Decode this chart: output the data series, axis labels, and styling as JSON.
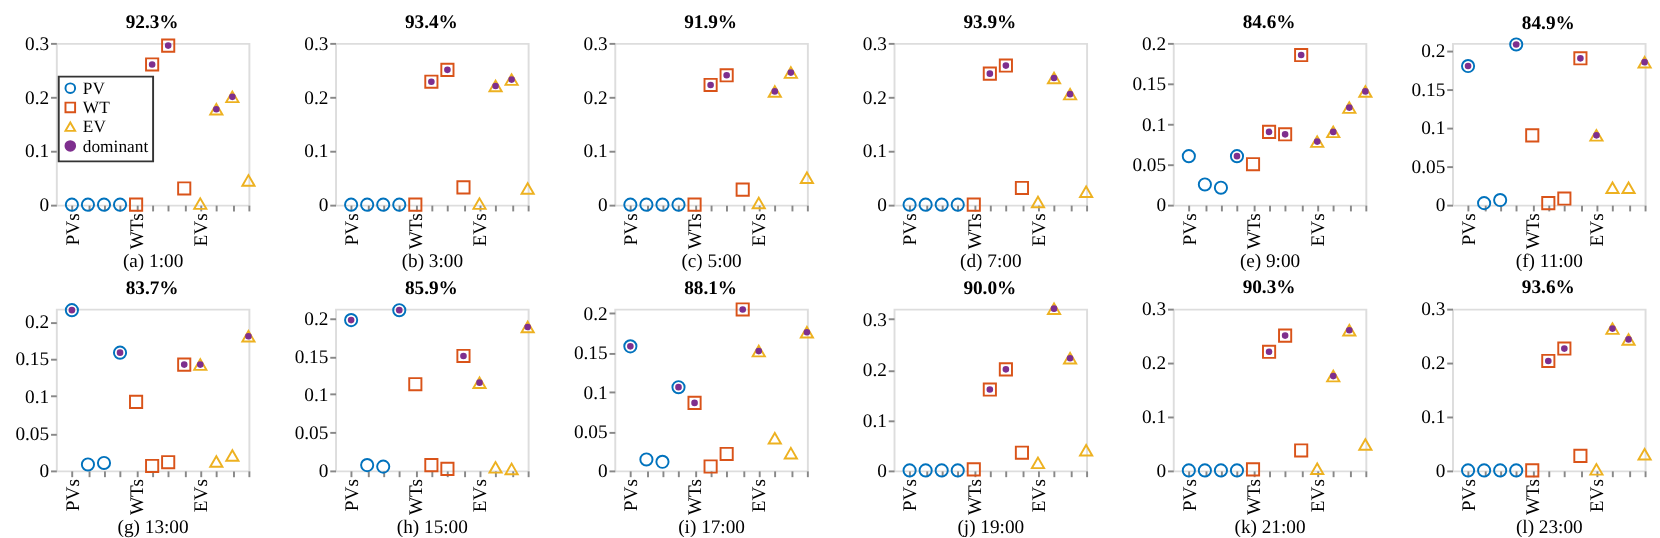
{
  "chart_data": [
    {
      "type": "scatter",
      "title": "92.3%",
      "xlabel": "(a) 1:00",
      "categories": [
        "PVs",
        null,
        null,
        null,
        "WTs",
        null,
        null,
        null,
        "EVs",
        null,
        null,
        null
      ],
      "ylim": [
        0,
        0.3
      ],
      "yticks": [
        0,
        0.1,
        0.2,
        0.3
      ],
      "grid": false,
      "legend": "left",
      "series": [
        {
          "name": "PV",
          "color": "#0072bd",
          "marker": "circle",
          "values": [
            0,
            0,
            0,
            0,
            null,
            null,
            null,
            null,
            null,
            null,
            null,
            null
          ]
        },
        {
          "name": "WT",
          "color": "#d95319",
          "marker": "square",
          "values": [
            null,
            null,
            null,
            null,
            0,
            0.26,
            0.295,
            0.03,
            null,
            null,
            null,
            null
          ]
        },
        {
          "name": "EV",
          "color": "#edb120",
          "marker": "triangle",
          "values": [
            null,
            null,
            null,
            null,
            null,
            null,
            null,
            null,
            0.002,
            0.177,
            0.2,
            0.045
          ]
        },
        {
          "name": "dominant",
          "color": "#7e2f8e",
          "marker": "circle",
          "values": [
            null,
            null,
            null,
            null,
            null,
            0.26,
            0.295,
            null,
            null,
            0.177,
            0.2,
            null
          ]
        }
      ]
    },
    {
      "type": "scatter",
      "title": "93.4%",
      "xlabel": "(b) 3:00",
      "categories": [
        "PVs",
        null,
        null,
        null,
        "WTs",
        null,
        null,
        null,
        "EVs",
        null,
        null,
        null
      ],
      "ylim": [
        0,
        0.3
      ],
      "yticks": [
        0,
        0.1,
        0.2,
        0.3
      ],
      "grid": false,
      "series": [
        {
          "color": "#0072bd",
          "marker": "circle",
          "values": [
            0,
            0,
            0,
            0,
            null,
            null,
            null,
            null,
            null,
            null,
            null,
            null
          ]
        },
        {
          "color": "#d95319",
          "marker": "square",
          "values": [
            null,
            null,
            null,
            null,
            0,
            0.228,
            0.25,
            0.032,
            null,
            null,
            null,
            null
          ]
        },
        {
          "color": "#edb120",
          "marker": "triangle",
          "values": [
            null,
            null,
            null,
            null,
            null,
            null,
            null,
            null,
            0.002,
            0.22,
            0.232,
            0.03
          ]
        },
        {
          "color": "#7e2f8e",
          "marker": "circle",
          "values": [
            null,
            null,
            null,
            null,
            null,
            0.228,
            0.25,
            null,
            null,
            0.22,
            0.232,
            null
          ]
        }
      ]
    },
    {
      "type": "scatter",
      "title": "91.9%",
      "xlabel": "(c) 5:00",
      "categories": [
        "PVs",
        null,
        null,
        null,
        "WTs",
        null,
        null,
        null,
        "EVs",
        null,
        null,
        null
      ],
      "ylim": [
        0,
        0.3
      ],
      "yticks": [
        0,
        0.1,
        0.2,
        0.3
      ],
      "grid": false,
      "series": [
        {
          "color": "#0072bd",
          "marker": "circle",
          "values": [
            0,
            0,
            0,
            0,
            null,
            null,
            null,
            null,
            null,
            null,
            null,
            null
          ]
        },
        {
          "color": "#d95319",
          "marker": "square",
          "values": [
            null,
            null,
            null,
            null,
            0,
            0.222,
            0.24,
            0.028,
            null,
            null,
            null,
            null
          ]
        },
        {
          "color": "#edb120",
          "marker": "triangle",
          "values": [
            null,
            null,
            null,
            null,
            null,
            null,
            null,
            null,
            0.003,
            0.21,
            0.245,
            0.05
          ]
        },
        {
          "color": "#7e2f8e",
          "marker": "circle",
          "values": [
            null,
            null,
            null,
            null,
            null,
            0.222,
            0.24,
            null,
            null,
            0.21,
            0.245,
            null
          ]
        }
      ]
    },
    {
      "type": "scatter",
      "title": "93.9%",
      "xlabel": "(d) 7:00",
      "categories": [
        "PVs",
        null,
        null,
        null,
        "WTs",
        null,
        null,
        null,
        "EVs",
        null,
        null,
        null
      ],
      "ylim": [
        0,
        0.3
      ],
      "yticks": [
        0,
        0.1,
        0.2,
        0.3
      ],
      "grid": false,
      "series": [
        {
          "color": "#0072bd",
          "marker": "circle",
          "values": [
            0,
            0,
            0,
            0,
            null,
            null,
            null,
            null,
            null,
            null,
            null,
            null
          ]
        },
        {
          "color": "#d95319",
          "marker": "square",
          "values": [
            null,
            null,
            null,
            null,
            0,
            0.243,
            0.258,
            0.031,
            null,
            null,
            null,
            null
          ]
        },
        {
          "color": "#edb120",
          "marker": "triangle",
          "values": [
            null,
            null,
            null,
            null,
            null,
            null,
            null,
            null,
            0.005,
            0.235,
            0.205,
            0.024
          ]
        },
        {
          "color": "#7e2f8e",
          "marker": "circle",
          "values": [
            null,
            null,
            null,
            null,
            null,
            0.243,
            0.258,
            null,
            null,
            0.235,
            0.205,
            null
          ]
        }
      ]
    },
    {
      "type": "scatter",
      "title": "84.6%",
      "xlabel": "(e) 9:00",
      "categories": [
        "PVs",
        null,
        null,
        null,
        "WTs",
        null,
        null,
        null,
        "EVs",
        null,
        null,
        null
      ],
      "ylim": [
        0,
        0.2
      ],
      "yticks": [
        0,
        0.05,
        0.1,
        0.15,
        0.2
      ],
      "grid": false,
      "series": [
        {
          "color": "#0072bd",
          "marker": "circle",
          "values": [
            0.06,
            0.025,
            0.021,
            0.06,
            null,
            null,
            null,
            null,
            null,
            null,
            null,
            null
          ]
        },
        {
          "color": "#d95319",
          "marker": "square",
          "values": [
            null,
            null,
            null,
            null,
            0.05,
            0.09,
            0.087,
            0.185,
            null,
            null,
            null,
            null
          ]
        },
        {
          "color": "#edb120",
          "marker": "triangle",
          "values": [
            null,
            null,
            null,
            null,
            null,
            null,
            null,
            null,
            0.078,
            0.09,
            0.12,
            0.14
          ]
        },
        {
          "color": "#7e2f8e",
          "marker": "circle",
          "values": [
            null,
            null,
            null,
            0.06,
            null,
            0.09,
            0.087,
            0.185,
            0.078,
            0.09,
            0.12,
            0.14
          ]
        }
      ]
    },
    {
      "type": "scatter",
      "title": "84.9%",
      "xlabel": "(f) 11:00",
      "categories": [
        "PVs",
        null,
        null,
        null,
        "WTs",
        null,
        null,
        null,
        "EVs",
        null,
        null,
        null
      ],
      "ylim": [
        0,
        0.21
      ],
      "yticks": [
        0,
        0.05,
        0.1,
        0.15,
        0.2
      ],
      "grid": false,
      "series": [
        {
          "color": "#0072bd",
          "marker": "circle",
          "values": [
            0.18,
            0.002,
            0.006,
            0.208,
            null,
            null,
            null,
            null,
            null,
            null,
            null,
            null
          ]
        },
        {
          "color": "#d95319",
          "marker": "square",
          "values": [
            null,
            null,
            null,
            null,
            0.09,
            0.002,
            0.008,
            0.19,
            null,
            null,
            null,
            null
          ]
        },
        {
          "color": "#edb120",
          "marker": "triangle",
          "values": [
            null,
            null,
            null,
            null,
            null,
            null,
            null,
            null,
            0.09,
            0.022,
            0.022,
            0.185
          ]
        },
        {
          "color": "#7e2f8e",
          "marker": "circle",
          "values": [
            0.18,
            null,
            null,
            0.208,
            null,
            null,
            null,
            0.19,
            0.09,
            null,
            null,
            0.185
          ]
        }
      ]
    },
    {
      "type": "scatter",
      "title": "83.7%",
      "xlabel": "(g) 13:00",
      "categories": [
        "PVs",
        null,
        null,
        null,
        "WTs",
        null,
        null,
        null,
        "EVs",
        null,
        null,
        null
      ],
      "ylim": [
        0,
        0.217
      ],
      "yticks": [
        0,
        0.05,
        0.1,
        0.15,
        0.2
      ],
      "grid": false,
      "series": [
        {
          "color": "#0072bd",
          "marker": "circle",
          "values": [
            0.215,
            0.008,
            0.01,
            0.158,
            null,
            null,
            null,
            null,
            null,
            null,
            null,
            null
          ]
        },
        {
          "color": "#d95319",
          "marker": "square",
          "values": [
            null,
            null,
            null,
            null,
            0.092,
            0.006,
            0.011,
            0.142,
            null,
            null,
            null,
            null
          ]
        },
        {
          "color": "#edb120",
          "marker": "triangle",
          "values": [
            null,
            null,
            null,
            null,
            null,
            null,
            null,
            null,
            0.142,
            0.012,
            0.02,
            0.18
          ]
        },
        {
          "color": "#7e2f8e",
          "marker": "circle",
          "values": [
            0.215,
            null,
            null,
            0.158,
            null,
            null,
            null,
            0.142,
            0.142,
            null,
            null,
            0.18
          ]
        }
      ]
    },
    {
      "type": "scatter",
      "title": "85.9%",
      "xlabel": "(h) 15:00",
      "categories": [
        "PVs",
        null,
        null,
        null,
        "WTs",
        null,
        null,
        null,
        "EVs",
        null,
        null,
        null
      ],
      "ylim": [
        0,
        0.212
      ],
      "yticks": [
        0,
        0.05,
        0.1,
        0.15,
        0.2
      ],
      "grid": false,
      "series": [
        {
          "color": "#0072bd",
          "marker": "circle",
          "values": [
            0.197,
            0.007,
            0.005,
            0.21,
            null,
            null,
            null,
            null,
            null,
            null,
            null,
            null
          ]
        },
        {
          "color": "#d95319",
          "marker": "square",
          "values": [
            null,
            null,
            null,
            null,
            0.113,
            0.007,
            0.002,
            0.15,
            null,
            null,
            null,
            null
          ]
        },
        {
          "color": "#edb120",
          "marker": "triangle",
          "values": [
            null,
            null,
            null,
            null,
            null,
            null,
            null,
            null,
            0.115,
            0.004,
            0.002,
            0.188
          ]
        },
        {
          "color": "#7e2f8e",
          "marker": "circle",
          "values": [
            0.197,
            null,
            null,
            0.21,
            null,
            null,
            null,
            0.15,
            0.115,
            null,
            null,
            0.188
          ]
        }
      ]
    },
    {
      "type": "scatter",
      "title": "88.1%",
      "xlabel": "(i) 17:00",
      "categories": [
        "PVs",
        null,
        null,
        null,
        "WTs",
        null,
        null,
        null,
        "EVs",
        null,
        null,
        null
      ],
      "ylim": [
        0,
        0.206
      ],
      "yticks": [
        0,
        0.05,
        0.1,
        0.15,
        0.2
      ],
      "grid": false,
      "series": [
        {
          "color": "#0072bd",
          "marker": "circle",
          "values": [
            0.158,
            0.014,
            0.011,
            0.106,
            null,
            null,
            null,
            null,
            null,
            null,
            null,
            null
          ]
        },
        {
          "color": "#d95319",
          "marker": "square",
          "values": [
            null,
            null,
            null,
            null,
            0.086,
            0.005,
            0.021,
            0.205,
            null,
            null,
            null,
            null
          ]
        },
        {
          "color": "#edb120",
          "marker": "triangle",
          "values": [
            null,
            null,
            null,
            null,
            null,
            null,
            null,
            null,
            0.152,
            0.041,
            0.022,
            0.176
          ]
        },
        {
          "color": "#7e2f8e",
          "marker": "circle",
          "values": [
            0.158,
            null,
            null,
            0.106,
            0.086,
            null,
            null,
            0.205,
            0.152,
            null,
            null,
            0.176
          ]
        }
      ]
    },
    {
      "type": "scatter",
      "title": "90.0%",
      "xlabel": "(j) 19:00",
      "categories": [
        "PVs",
        null,
        null,
        null,
        "WTs",
        null,
        null,
        null,
        "EVs",
        null,
        null,
        null
      ],
      "ylim": [
        0,
        0.32
      ],
      "yticks": [
        0,
        0.1,
        0.2,
        0.3
      ],
      "grid": false,
      "series": [
        {
          "color": "#0072bd",
          "marker": "circle",
          "values": [
            0,
            0,
            0,
            0,
            null,
            null,
            null,
            null,
            null,
            null,
            null,
            null
          ]
        },
        {
          "color": "#d95319",
          "marker": "square",
          "values": [
            null,
            null,
            null,
            null,
            0.002,
            0.16,
            0.2,
            0.035,
            null,
            null,
            null,
            null
          ]
        },
        {
          "color": "#edb120",
          "marker": "triangle",
          "values": [
            null,
            null,
            null,
            null,
            null,
            null,
            null,
            null,
            0.015,
            0.32,
            0.222,
            0.04
          ]
        },
        {
          "color": "#7e2f8e",
          "marker": "circle",
          "values": [
            null,
            null,
            null,
            null,
            null,
            0.16,
            0.2,
            null,
            null,
            0.32,
            0.222,
            null
          ]
        }
      ]
    },
    {
      "type": "scatter",
      "title": "90.3%",
      "xlabel": "(k) 21:00",
      "categories": [
        "PVs",
        null,
        null,
        null,
        "WTs",
        null,
        null,
        null,
        "EVs",
        null,
        null,
        null
      ],
      "ylim": [
        0,
        0.3
      ],
      "yticks": [
        0,
        0.1,
        0.2,
        0.3
      ],
      "grid": false,
      "series": [
        {
          "color": "#0072bd",
          "marker": "circle",
          "values": [
            0,
            0,
            0,
            0,
            null,
            null,
            null,
            null,
            null,
            null,
            null,
            null
          ]
        },
        {
          "color": "#d95319",
          "marker": "square",
          "values": [
            null,
            null,
            null,
            null,
            0.002,
            0.22,
            0.25,
            0.037,
            null,
            null,
            null,
            null
          ]
        },
        {
          "color": "#edb120",
          "marker": "triangle",
          "values": [
            null,
            null,
            null,
            null,
            null,
            null,
            null,
            null,
            0.003,
            0.175,
            0.26,
            0.048
          ]
        },
        {
          "color": "#7e2f8e",
          "marker": "circle",
          "values": [
            null,
            null,
            null,
            null,
            null,
            0.22,
            0.25,
            null,
            null,
            0.175,
            0.26,
            null
          ]
        }
      ]
    },
    {
      "type": "scatter",
      "title": "93.6%",
      "xlabel": "(l) 23:00",
      "categories": [
        "PVs",
        null,
        null,
        null,
        "WTs",
        null,
        null,
        null,
        "EVs",
        null,
        null,
        null
      ],
      "ylim": [
        0,
        0.3
      ],
      "yticks": [
        0,
        0.1,
        0.2,
        0.3
      ],
      "grid": false,
      "series": [
        {
          "color": "#0072bd",
          "marker": "circle",
          "values": [
            0,
            0,
            0,
            0,
            null,
            null,
            null,
            null,
            null,
            null,
            null,
            null
          ]
        },
        {
          "color": "#d95319",
          "marker": "square",
          "values": [
            null,
            null,
            null,
            null,
            0,
            0.203,
            0.226,
            0.027,
            null,
            null,
            null,
            null
          ]
        },
        {
          "color": "#edb120",
          "marker": "triangle",
          "values": [
            null,
            null,
            null,
            null,
            null,
            null,
            null,
            null,
            0.002,
            0.263,
            0.243,
            0.03
          ]
        },
        {
          "color": "#7e2f8e",
          "marker": "circle",
          "values": [
            null,
            null,
            null,
            null,
            null,
            0.203,
            0.226,
            null,
            null,
            0.263,
            0.243,
            null
          ]
        }
      ]
    }
  ]
}
